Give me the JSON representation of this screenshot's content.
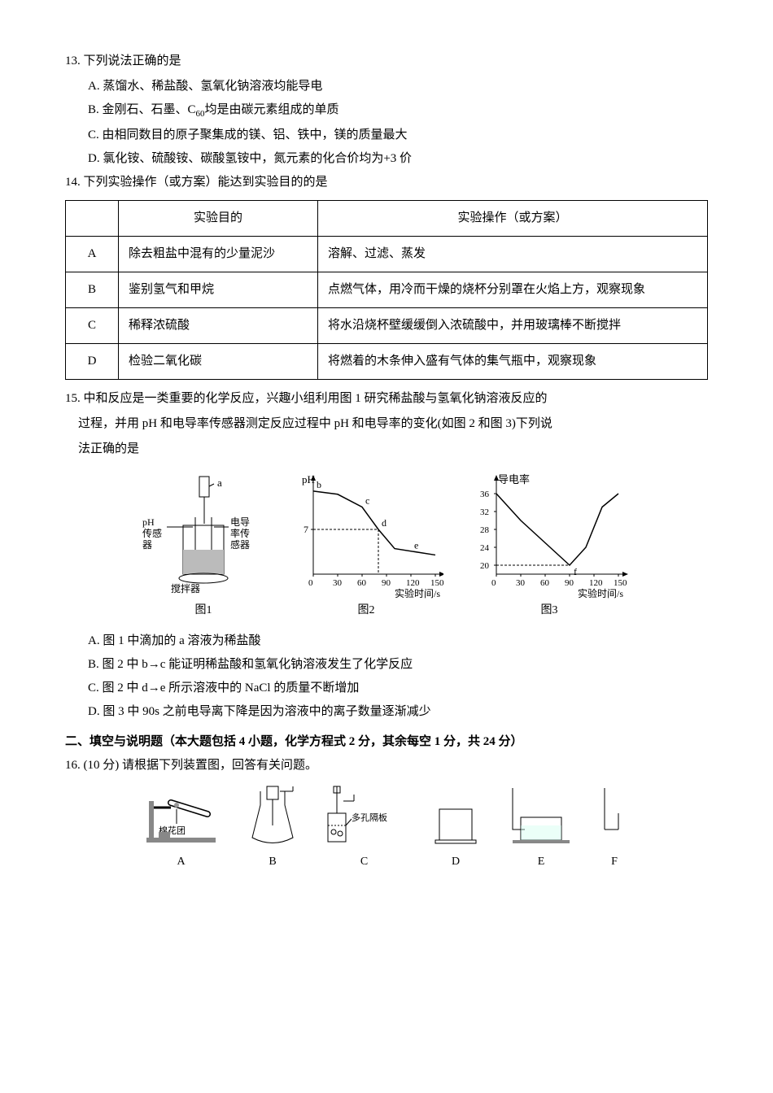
{
  "q13": {
    "stem": "13. 下列说法正确的是",
    "opts": {
      "A": "A. 蒸馏水、稀盐酸、氢氧化钠溶液均能导电",
      "B_pre": "B. 金刚石、石墨、C",
      "B_sub": "60",
      "B_post": "均是由碳元素组成的单质",
      "C": "C. 由相同数目的原子聚集成的镁、铝、铁中，镁的质量最大",
      "D": "D. 氯化铵、硫酸铵、碳酸氢铵中，氮元素的化合价均为+3 价"
    }
  },
  "q14": {
    "stem": "14. 下列实验操作（或方案）能达到实验目的的是",
    "headers": {
      "purpose": "实验目的",
      "op": "实验操作（或方案）"
    },
    "rows": [
      {
        "k": "A",
        "purpose": "除去粗盐中混有的少量泥沙",
        "op": "溶解、过滤、蒸发"
      },
      {
        "k": "B",
        "purpose": "鉴别氢气和甲烷",
        "op": "点燃气体，用冷而干燥的烧杯分别罩在火焰上方，观察现象"
      },
      {
        "k": "C",
        "purpose": "稀释浓硫酸",
        "op": "将水沿烧杯壁缓缓倒入浓硫酸中，并用玻璃棒不断搅拌"
      },
      {
        "k": "D",
        "purpose": "检验二氧化碳",
        "op": "将燃着的木条伸入盛有气体的集气瓶中，观察现象"
      }
    ]
  },
  "q15": {
    "stem": "15. 中和反应是一类重要的化学反应，兴趣小组利用图 1 研究稀盐酸与氢氧化钠溶液反应的",
    "cont1": "过程，并用 pH 和电导率传感器测定反应过程中 pH 和电导率的变化(如图 2 和图 3)下列说",
    "cont2": "法正确的是",
    "opts": {
      "A": "A. 图 1 中滴加的 a 溶液为稀盐酸",
      "B": "B. 图 2 中 b→c 能证明稀盐酸和氢氧化钠溶液发生了化学反应",
      "C": "C. 图 2 中 d→e 所示溶液中的 NaCl 的质量不断增加",
      "D": "D. 图 3 中 90s 之前电导离下降是因为溶液中的离子数量逐渐减少"
    },
    "fig1": {
      "labels": {
        "a": "a",
        "ph": "pH传感器",
        "cond": "电导率传感器",
        "stir": "搅拌器"
      },
      "caption": "图1"
    },
    "fig2": {
      "type": "line",
      "ylabel": "pH",
      "xlabel": "实验时间/s",
      "ymid": 7,
      "xticks": [
        0,
        30,
        60,
        90,
        120,
        150
      ],
      "points": {
        "b": "b",
        "c": "c",
        "d": "d",
        "e": "e"
      },
      "caption": "图2",
      "data": {
        "x": [
          0,
          30,
          60,
          80,
          100,
          150
        ],
        "y": [
          13,
          12.5,
          10.5,
          7,
          4,
          3
        ]
      },
      "ylim": [
        0,
        14
      ],
      "axis_color": "#000000",
      "line_color": "#000000"
    },
    "fig3": {
      "type": "line",
      "ylabel": "导电率",
      "xlabel": "实验时间/s",
      "yticks": [
        20,
        24,
        28,
        32,
        36
      ],
      "xticks": [
        0,
        30,
        60,
        90,
        120,
        150
      ],
      "point_f": "f",
      "caption": "图3",
      "data": {
        "x": [
          0,
          30,
          60,
          90,
          110,
          130,
          150
        ],
        "y": [
          36,
          30,
          25,
          20,
          24,
          33,
          36
        ]
      },
      "ylim": [
        18,
        38
      ],
      "axis_color": "#000000",
      "line_color": "#000000"
    }
  },
  "section2": "二、填空与说明题（本大题包括 4 小题，化学方程式 2 分，其余每空 1 分，共 24 分）",
  "q16": {
    "stem": "16. (10 分) 请根据下列装置图，回答有关问题。",
    "labels": {
      "A": "A",
      "B": "B",
      "C": "C",
      "D": "D",
      "E": "E",
      "F": "F"
    },
    "note_cotton": "棉花团",
    "note_plate": "多孔隔板"
  }
}
